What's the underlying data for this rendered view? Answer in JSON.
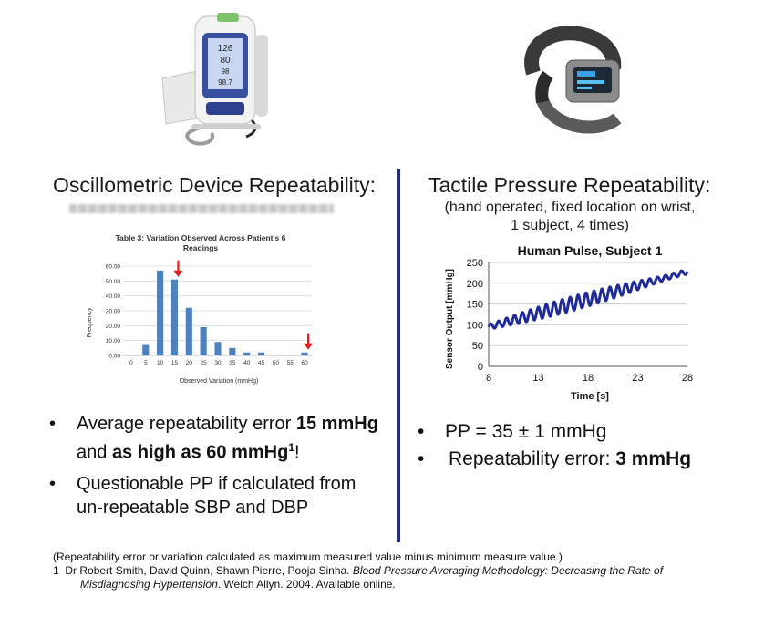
{
  "left": {
    "heading": "Oscillometric Device Repeatability:",
    "table_title_line1": "Table 3: Variation Observed Across Patient's 6",
    "table_title_line2": "Readings",
    "bullets": [
      {
        "pre": "Average repeatability error ",
        "bold1": "15 mmHg",
        "mid": " and ",
        "bold2": "as high as 60 mmHg",
        "sup": "1",
        "post": "!"
      },
      {
        "text": "Questionable PP if calculated from un-repeatable SBP and DBP"
      }
    ]
  },
  "right": {
    "heading": "Tactile Pressure Repeatability:",
    "subnote_line1": "(hand operated, fixed location on wrist,",
    "subnote_line2": "1 subject, 4 times)",
    "bullets": [
      {
        "text": "PP = 35 ± 1 mmHg"
      },
      {
        "pre": "Repeatability error: ",
        "bold": "3 mmHg"
      }
    ]
  },
  "footnote": {
    "line1": "(Repeatability error or variation calculated as maximum measured value minus minimum measure value.)",
    "ref_num": "1",
    "authors": "Dr Robert Smith, David Quinn, Shawn Pierre, Pooja Sinha. ",
    "title_italic1": "Blood Pressure Averaging Methodology: Decreasing the Rate of",
    "title_italic2": "Misdiagnosing Hypertension",
    "tail": ". Welch Allyn. 2004. Available online."
  },
  "bullet_glyph": "•",
  "chart_data": [
    {
      "type": "bar",
      "title": "Table 3: Variation Observed Across Patient's 6 Readings",
      "xlabel": "Observed Variation (mmHg)",
      "ylabel": "Frequency",
      "categories": [
        "0",
        "5",
        "10",
        "15",
        "20",
        "25",
        "30",
        "35",
        "40",
        "45",
        "50",
        "55",
        "60"
      ],
      "values": [
        0,
        7,
        57,
        51,
        32,
        19,
        9,
        5,
        2,
        2,
        0,
        0,
        2
      ],
      "ylim": [
        0,
        60
      ],
      "yticks": [
        "0.00",
        "10.00",
        "20.00",
        "30.00",
        "40.00",
        "50.00",
        "60.00"
      ],
      "grid": true,
      "bar_color": "#4f81bd",
      "annotations": [
        {
          "type": "red-arrow",
          "category": "15"
        },
        {
          "type": "red-arrow",
          "category": "60"
        }
      ]
    },
    {
      "type": "line",
      "title": "Human Pulse, Subject 1",
      "xlabel": "Time [s]",
      "ylabel": "Sensor Output [mmHg]",
      "xlim": [
        8,
        28
      ],
      "ylim": [
        0,
        250
      ],
      "xticks": [
        8,
        13,
        18,
        23,
        28
      ],
      "yticks": [
        0,
        50,
        100,
        150,
        200,
        250
      ],
      "grid": true,
      "line_color": "#1f2a99",
      "waveform": {
        "baseline_start": 95,
        "baseline_end": 228,
        "pulse_amplitude": 17,
        "pulse_period_s": 0.8,
        "t_start": 8,
        "t_end": 28
      }
    }
  ]
}
